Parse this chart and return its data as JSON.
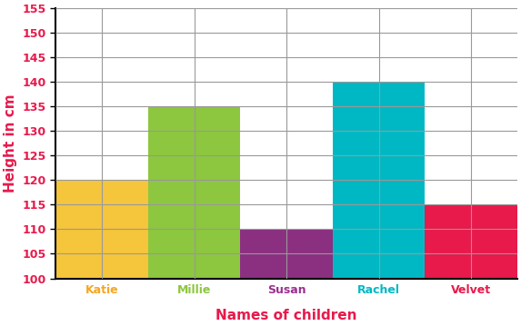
{
  "categories": [
    "Katie",
    "Millie",
    "Susan",
    "Rachel",
    "Velvet"
  ],
  "values": [
    120,
    135,
    110,
    140,
    115
  ],
  "bar_colors": [
    "#F5C53C",
    "#8DC63F",
    "#8B3080",
    "#00B8C4",
    "#E8194B"
  ],
  "xlabel_colors": [
    "#F5A623",
    "#8DC63F",
    "#9B3090",
    "#00B8C4",
    "#E8194B"
  ],
  "xlabel": "Names of children",
  "ylabel": "Height in cm",
  "xlabel_color": "#E8194B",
  "ylabel_color": "#E8194B",
  "ytick_color": "#E8194B",
  "ylim": [
    100,
    155
  ],
  "yticks": [
    100,
    105,
    110,
    115,
    120,
    125,
    130,
    135,
    140,
    145,
    150,
    155
  ],
  "background_color": "#ffffff",
  "grid_color": "#999999",
  "bar_width": 1.0
}
